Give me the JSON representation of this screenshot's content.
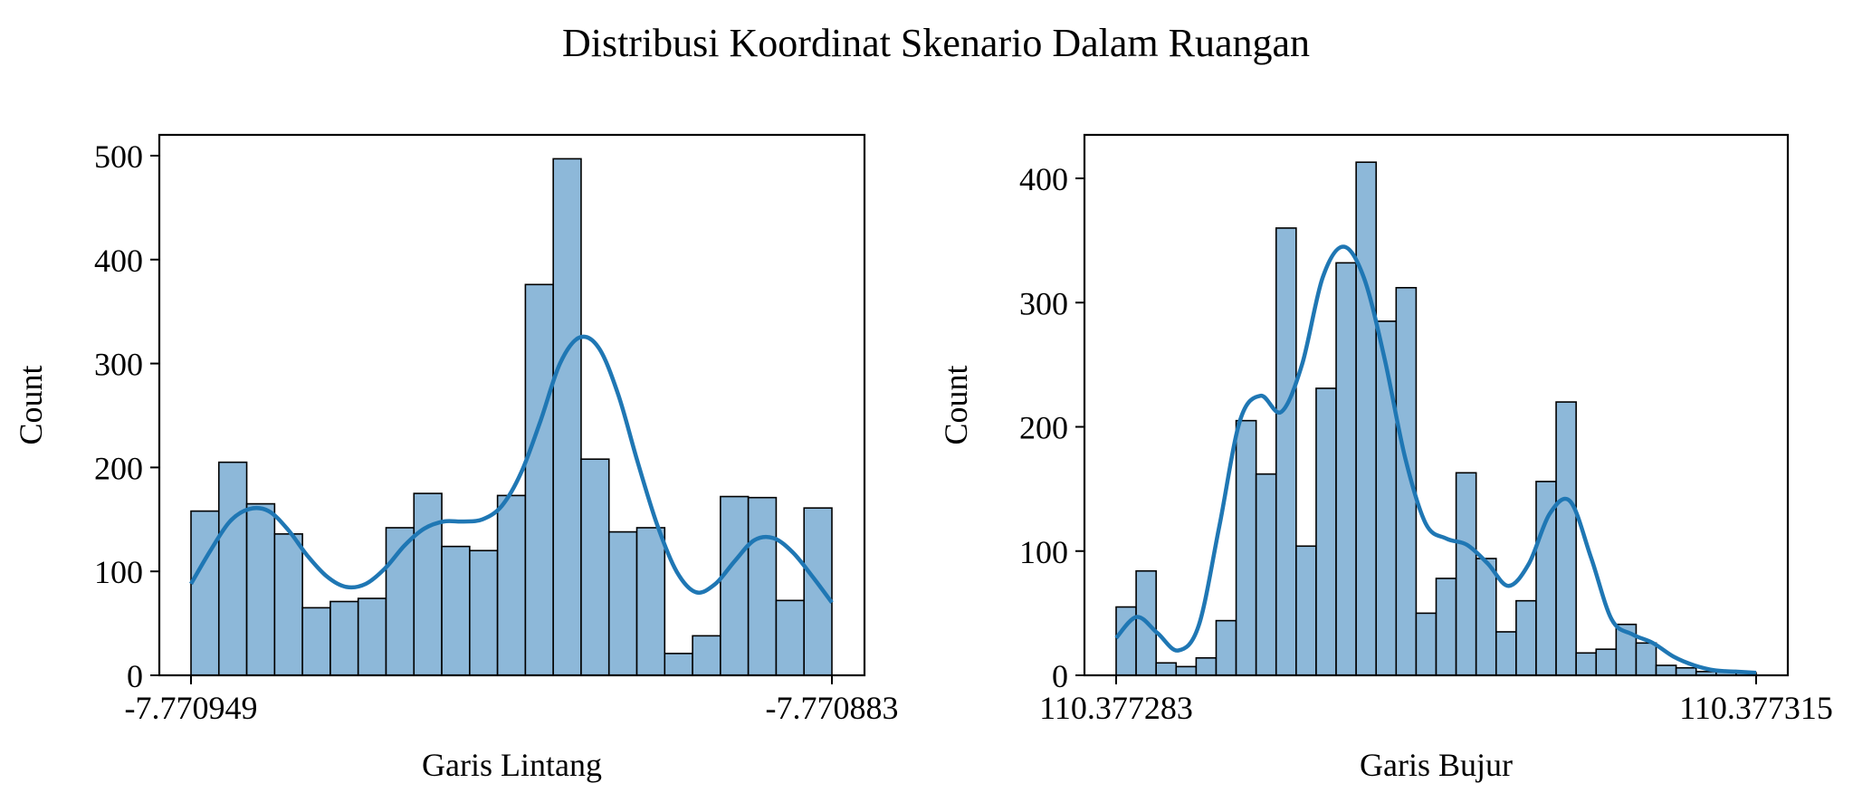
{
  "title": "Distribusi Koordinat Skenario Dalam Ruangan",
  "colors": {
    "bar_fill": "#8db8d9",
    "bar_edge": "#000000",
    "kde_line": "#1f77b4",
    "axes": "#000000"
  },
  "chart_data": [
    {
      "type": "bar",
      "subtype": "histogram_with_kde",
      "xlabel": "Garis Lintang",
      "ylabel": "Count",
      "xlim": [
        -7.770949,
        -7.770883
      ],
      "ylim": [
        0,
        520
      ],
      "xticks": [
        -7.770949,
        -7.770883
      ],
      "xtick_labels": [
        "-7.770949",
        "-7.770883"
      ],
      "yticks": [
        0,
        100,
        200,
        300,
        400,
        500
      ],
      "bins": 23,
      "values": [
        158,
        205,
        165,
        136,
        65,
        71,
        74,
        142,
        175,
        124,
        120,
        173,
        376,
        497,
        208,
        138,
        142,
        21,
        38,
        172,
        171,
        72,
        161
      ],
      "kde": [
        [
          -7.770949,
          88
        ],
        [
          -7.770948,
          120
        ],
        [
          -7.770947,
          148
        ],
        [
          -7.770946,
          160
        ],
        [
          -7.770945,
          158
        ],
        [
          -7.770944,
          140
        ],
        [
          -7.770943,
          115
        ],
        [
          -7.770942,
          95
        ],
        [
          -7.770941,
          85
        ],
        [
          -7.77094,
          88
        ],
        [
          -7.770939,
          103
        ],
        [
          -7.770938,
          125
        ],
        [
          -7.770937,
          141
        ],
        [
          -7.770936,
          148
        ],
        [
          -7.770935,
          148
        ],
        [
          -7.770934,
          150
        ],
        [
          -7.770933,
          163
        ],
        [
          -7.770932,
          195
        ],
        [
          -7.770931,
          245
        ],
        [
          -7.77093,
          300
        ],
        [
          -7.770929,
          325
        ],
        [
          -7.770928,
          315
        ],
        [
          -7.770927,
          270
        ],
        [
          -7.770926,
          205
        ],
        [
          -7.770925,
          145
        ],
        [
          -7.770924,
          100
        ],
        [
          -7.770923,
          80
        ],
        [
          -7.770922,
          88
        ],
        [
          -7.770921,
          110
        ],
        [
          -7.77092,
          130
        ],
        [
          -7.770919,
          132
        ],
        [
          -7.770918,
          118
        ],
        [
          -7.770917,
          95
        ],
        [
          -7.770916,
          70
        ]
      ],
      "kde_range": [
        -7.770949,
        -7.770916
      ]
    },
    {
      "type": "bar",
      "subtype": "histogram_with_kde",
      "xlabel": "Garis Bujur",
      "ylabel": "Count",
      "xlim": [
        110.377283,
        110.377315
      ],
      "ylim": [
        0,
        435
      ],
      "xticks": [
        110.377283,
        110.377315
      ],
      "xtick_labels": [
        "110.377283",
        "110.377315"
      ],
      "yticks": [
        0,
        100,
        200,
        300,
        400
      ],
      "bins": 32,
      "values": [
        55,
        84,
        10,
        7,
        14,
        44,
        205,
        162,
        360,
        104,
        231,
        332,
        413,
        285,
        312,
        50,
        78,
        163,
        94,
        35,
        60,
        156,
        220,
        18,
        21,
        41,
        26,
        8,
        6,
        3,
        3,
        2
      ],
      "kde": [
        [
          0,
          30
        ],
        [
          1,
          47
        ],
        [
          2,
          34
        ],
        [
          3,
          20
        ],
        [
          4,
          40
        ],
        [
          5,
          120
        ],
        [
          6,
          205
        ],
        [
          7,
          225
        ],
        [
          8,
          212
        ],
        [
          9,
          250
        ],
        [
          10,
          320
        ],
        [
          11,
          345
        ],
        [
          12,
          320
        ],
        [
          13,
          255
        ],
        [
          14,
          175
        ],
        [
          15,
          122
        ],
        [
          16,
          110
        ],
        [
          17,
          105
        ],
        [
          18,
          90
        ],
        [
          19,
          72
        ],
        [
          20,
          90
        ],
        [
          21,
          130
        ],
        [
          22,
          140
        ],
        [
          23,
          95
        ],
        [
          24,
          45
        ],
        [
          25,
          33
        ],
        [
          26,
          26
        ],
        [
          27,
          15
        ],
        [
          28,
          8
        ],
        [
          29,
          4
        ],
        [
          30,
          3
        ],
        [
          31,
          2
        ]
      ],
      "kde_range": [
        110.377283,
        110.377315
      ]
    }
  ]
}
